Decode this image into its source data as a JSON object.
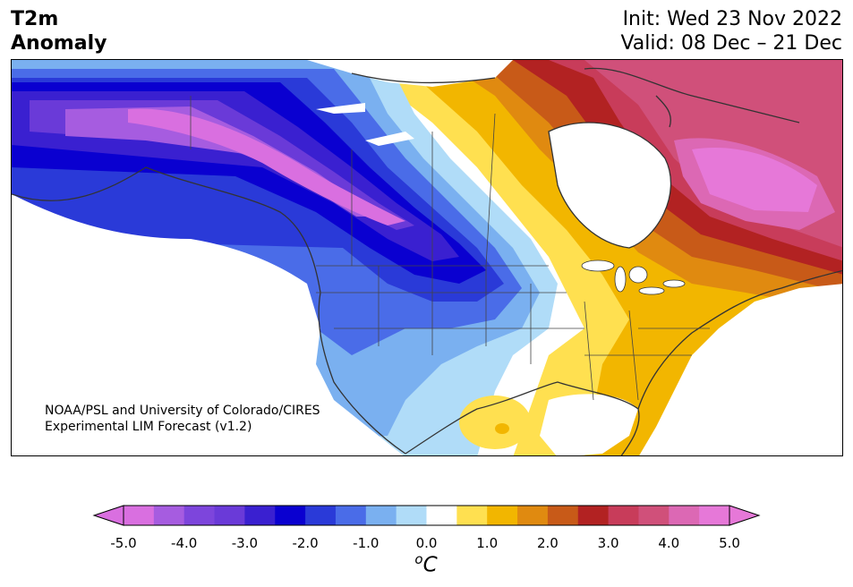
{
  "header": {
    "title_line1": "T2m",
    "title_line2": "Anomaly",
    "init_text": "Init: Wed 23 Nov 2022",
    "valid_text": "Valid: 08 Dec – 21 Dec"
  },
  "map": {
    "region": "North America",
    "credit_line1": "NOAA/PSL and University of Colorado/CIRES",
    "credit_line2": "Experimental LIM Forecast (v1.2)"
  },
  "colorbar": {
    "unit_base": "C",
    "unit_sup": "o",
    "ticks": [
      "-5.0",
      "-4.0",
      "-3.0",
      "-2.0",
      "-1.0",
      "0.0",
      "1.0",
      "2.0",
      "3.0",
      "4.0",
      "5.0"
    ],
    "colors": {
      "c_m50": "#d96fe0",
      "c_m45": "#a65ce0",
      "c_m40": "#7d45dc",
      "c_m35": "#6a3ad8",
      "c_m30": "#3a20d0",
      "c_m25": "#0a00d0",
      "c_m20": "#2a3ad8",
      "c_m15": "#4a6ce8",
      "c_m10": "#7ab0f0",
      "c_m05": "#b0dcf8",
      "c_zero": "#ffffff",
      "c_p05": "#ffe050",
      "c_p10": "#f2b600",
      "c_p15": "#e08a10",
      "c_p20": "#c85a18",
      "c_p25": "#b22222",
      "c_p30": "#c83c5a",
      "c_p35": "#d0507a",
      "c_p40": "#dc68b4",
      "c_p45": "#e678d8"
    }
  }
}
